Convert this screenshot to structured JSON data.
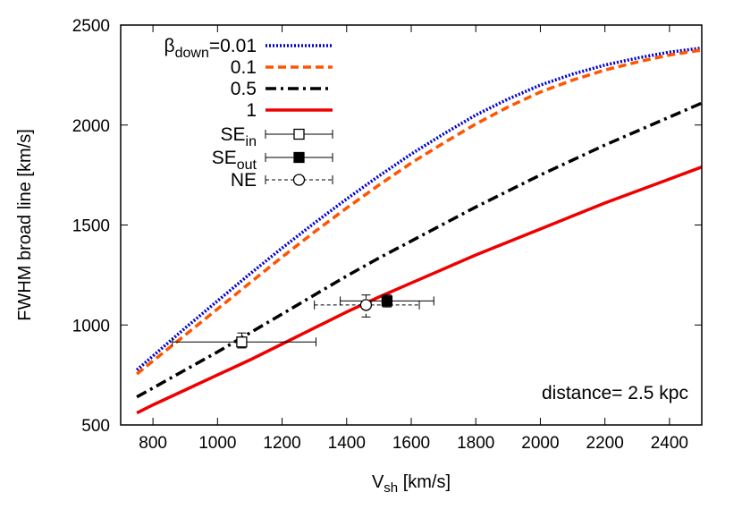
{
  "chart_data": {
    "type": "line",
    "xlabel": "V",
    "xlabel_sub": "sh",
    "xlabel_unit": " [km/s]",
    "ylabel": "FWHM broad line  [km/s]",
    "xlim": [
      700,
      2500
    ],
    "ylim": [
      500,
      2500
    ],
    "xticks": [
      800,
      1000,
      1200,
      1400,
      1600,
      1800,
      2000,
      2200,
      2400
    ],
    "yticks": [
      500,
      1000,
      1500,
      2000,
      2500
    ],
    "grid": false,
    "legend_position": "top-left",
    "annotation": "distance= 2.5 kpc",
    "x": [
      750,
      800,
      900,
      1000,
      1100,
      1200,
      1300,
      1400,
      1500,
      1600,
      1700,
      1800,
      1900,
      2000,
      2100,
      2200,
      2300,
      2400,
      2500
    ],
    "series": [
      {
        "legend_prefix": "β",
        "legend_sub": "down",
        "legend_suffix": "=0.01",
        "color": "#0000cc",
        "dash": "dotted",
        "values": [
          775,
          845,
          985,
          1120,
          1255,
          1385,
          1510,
          1630,
          1745,
          1855,
          1955,
          2050,
          2130,
          2200,
          2255,
          2300,
          2335,
          2365,
          2385
        ]
      },
      {
        "legend_prefix": "0.1",
        "legend_sub": "",
        "legend_suffix": "",
        "color": "#ff5500",
        "dash": "dashed",
        "values": [
          755,
          820,
          950,
          1080,
          1210,
          1340,
          1465,
          1585,
          1700,
          1810,
          1910,
          2005,
          2090,
          2165,
          2225,
          2275,
          2315,
          2350,
          2375
        ]
      },
      {
        "legend_prefix": "0.5",
        "legend_sub": "",
        "legend_suffix": "",
        "color": "#000000",
        "dash": "dashdot",
        "values": [
          640,
          685,
          775,
          865,
          960,
          1055,
          1150,
          1245,
          1335,
          1420,
          1505,
          1590,
          1670,
          1750,
          1825,
          1900,
          1970,
          2040,
          2110
        ]
      },
      {
        "legend_prefix": "1",
        "legend_sub": "",
        "legend_suffix": "",
        "color": "#ee0000",
        "dash": "solid",
        "values": [
          560,
          600,
          675,
          750,
          825,
          905,
          985,
          1065,
          1140,
          1210,
          1280,
          1350,
          1415,
          1480,
          1545,
          1610,
          1670,
          1730,
          1790
        ]
      }
    ],
    "points": [
      {
        "legend_prefix": "SE",
        "legend_sub": "in",
        "marker": "open-square",
        "line_style": "solid",
        "x": 1075,
        "y": 915,
        "x_err": [
          860,
          1305
        ],
        "y_err": [
          885,
          960
        ]
      },
      {
        "legend_prefix": "SE",
        "legend_sub": "out",
        "marker": "filled-square",
        "line_style": "solid",
        "x": 1525,
        "y": 1120,
        "x_err": [
          1380,
          1670
        ],
        "y_err": [
          1090,
          1150
        ]
      },
      {
        "legend_prefix": "NE",
        "legend_sub": "",
        "marker": "open-circle",
        "line_style": "dashed",
        "x": 1460,
        "y": 1100,
        "x_err": [
          1300,
          1625
        ],
        "y_err": [
          1040,
          1150
        ]
      }
    ]
  }
}
